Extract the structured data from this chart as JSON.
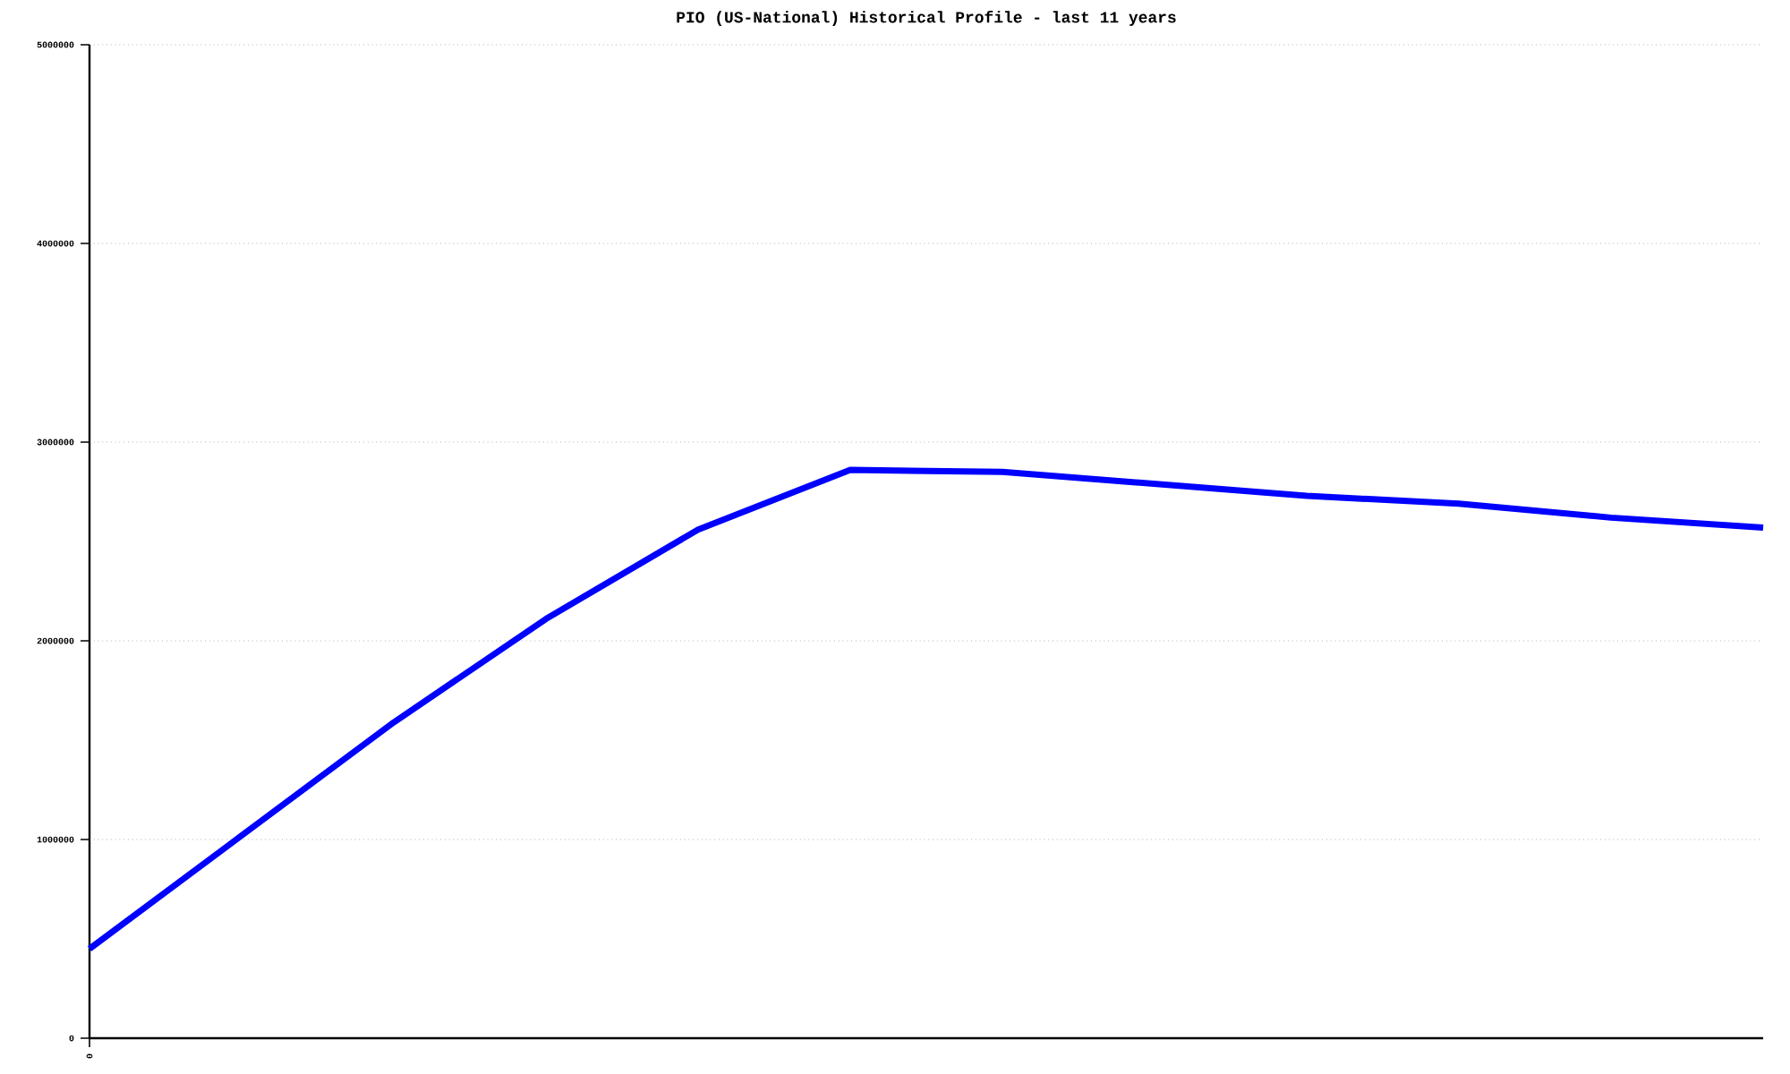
{
  "chart_data": {
    "type": "line",
    "title": "PIO (US-National) Historical Profile - last 11 years",
    "categories": [
      "0",
      null,
      null,
      null,
      null,
      null,
      null,
      null,
      null,
      null,
      null,
      null
    ],
    "values": [
      450000,
      1020000,
      1590000,
      2110000,
      2560000,
      2860000,
      2850000,
      2790000,
      2730000,
      2690000,
      2620000,
      2570000
    ],
    "color": "#0000ff",
    "ylim": [
      0,
      5000000
    ],
    "yticks": [
      0,
      1000000,
      2000000,
      3000000,
      4000000,
      5000000
    ],
    "grid": "y",
    "marker": "none",
    "line_style": "solid"
  }
}
